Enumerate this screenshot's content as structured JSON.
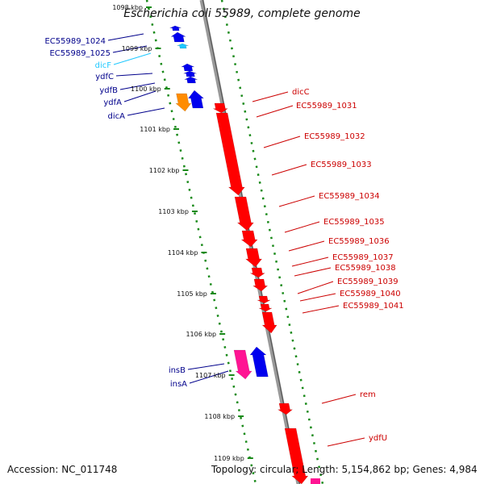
{
  "title": "Escherichia coli 55989, complete genome",
  "footer": {
    "accession": "Accession: NC_011748",
    "summary": "Topology: circular; Length: 5,154,862 bp; Genes: 4,984"
  },
  "colors": {
    "forward_gene": "#0000ee",
    "reverse_gene": "#ff0000",
    "mobile_element": "#ff1493",
    "rna": "#ff8c00",
    "small_rna": "#1ec8ff",
    "backbone": "#999999",
    "tick_mark": "#1a8a1a",
    "forward_label": "#00008b",
    "reverse_label": "#cc0000"
  },
  "ticks": [
    "1098 kbp",
    "1099 kbp",
    "1100 kbp",
    "1101 kbp",
    "1102 kbp",
    "1103 kbp",
    "1104 kbp",
    "1105 kbp",
    "1106 kbp",
    "1107 kbp",
    "1108 kbp",
    "1109 kbp"
  ],
  "left_labels": [
    "EC55989_1024",
    "EC55989_1025",
    "dicF",
    "ydfC",
    "ydfB",
    "ydfA",
    "dicA",
    "insB",
    "insA"
  ],
  "right_labels": [
    "dicC",
    "EC55989_1031",
    "EC55989_1032",
    "EC55989_1033",
    "EC55989_1034",
    "EC55989_1035",
    "EC55989_1036",
    "EC55989_1037",
    "EC55989_1038",
    "EC55989_1039",
    "EC55989_1040",
    "EC55989_1041",
    "rem",
    "ydfU"
  ]
}
